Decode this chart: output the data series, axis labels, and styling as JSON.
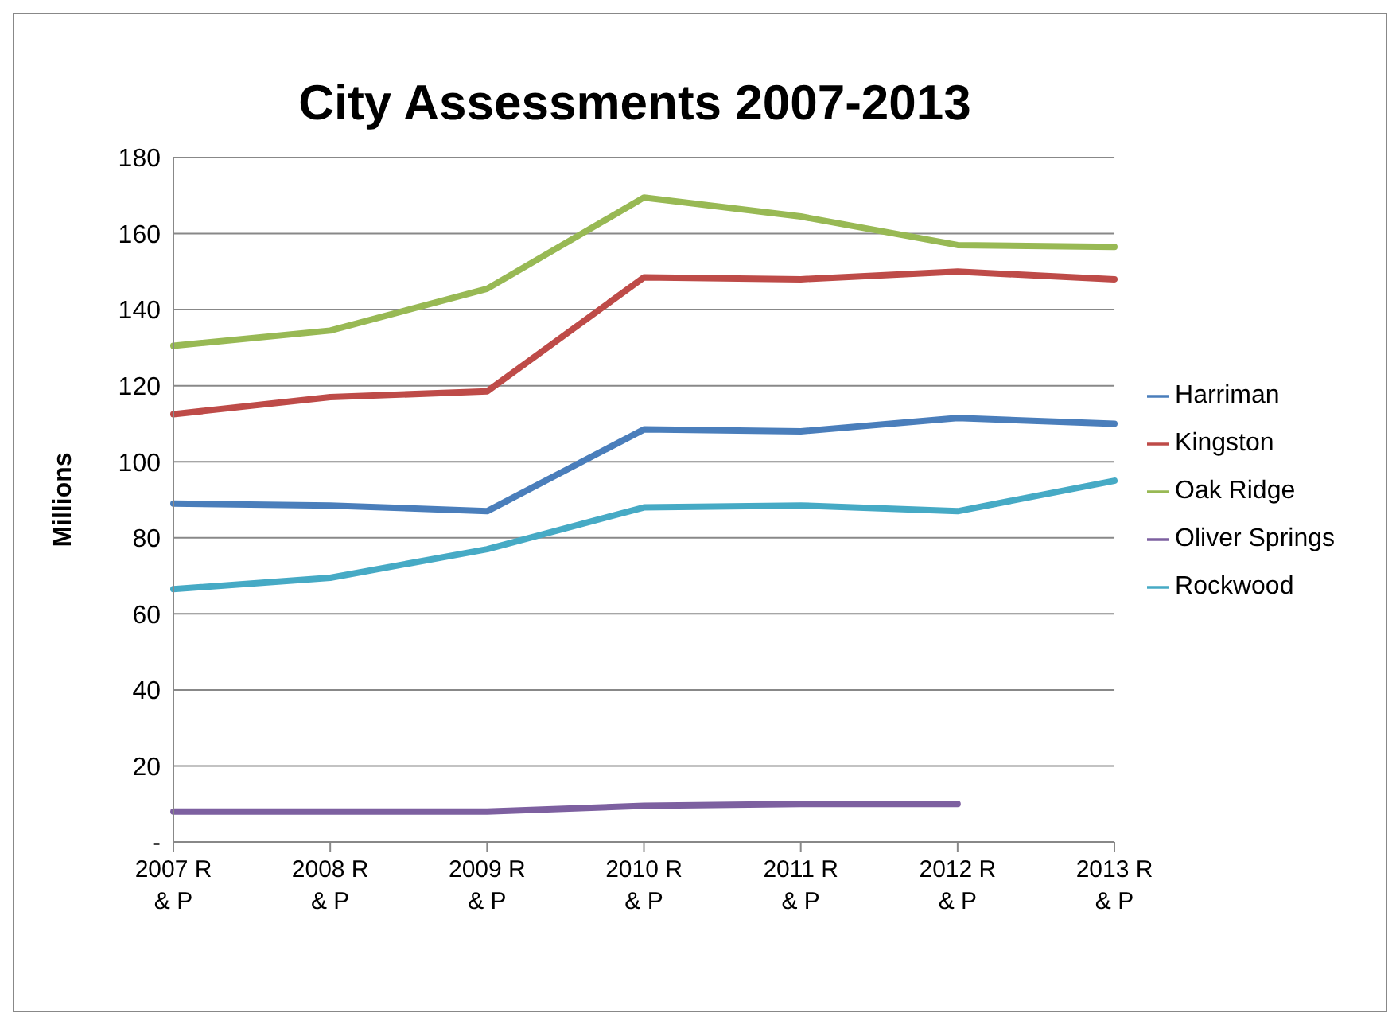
{
  "chart_data": {
    "type": "line",
    "title": "City Assessments 2007-2013",
    "ylabel": "Millions",
    "categories": [
      "2007 R & P",
      "2008 R & P",
      "2009 R & P",
      "2010 R & P",
      "2011 R & P",
      "2012 R & P",
      "2013 R & P"
    ],
    "series": [
      {
        "name": "Harriman",
        "color": "#4a7ebb",
        "values": [
          89,
          88.5,
          87,
          108.5,
          108,
          111.5,
          110
        ]
      },
      {
        "name": "Kingston",
        "color": "#be4b48",
        "values": [
          112.5,
          117,
          118.5,
          148.5,
          148,
          150,
          148
        ]
      },
      {
        "name": "Oak Ridge",
        "color": "#98b954",
        "values": [
          130.5,
          134.5,
          145.5,
          169.5,
          164.5,
          157,
          156.5
        ]
      },
      {
        "name": "Oliver Springs",
        "color": "#7d60a0",
        "values": [
          8,
          8,
          8,
          9.5,
          10,
          10,
          null
        ]
      },
      {
        "name": "Rockwood",
        "color": "#46aac5",
        "values": [
          66.5,
          69.5,
          77,
          88,
          88.5,
          87,
          95
        ]
      }
    ],
    "ylim": [
      0,
      180
    ],
    "yticks": [
      {
        "value": 0,
        "label": "-"
      },
      20,
      40,
      60,
      80,
      100,
      120,
      140,
      160,
      180
    ],
    "grid": "y",
    "legend": "right",
    "marker": "none",
    "line_style": "solid"
  }
}
